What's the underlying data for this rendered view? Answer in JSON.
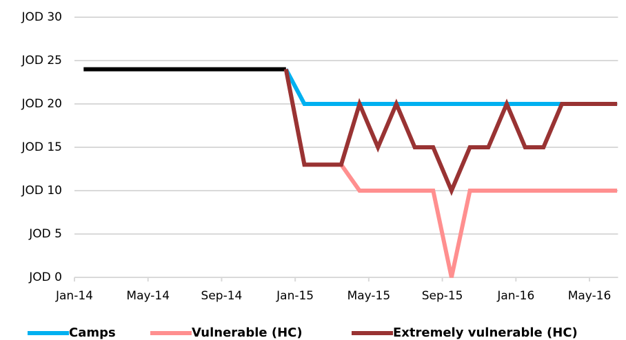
{
  "chart_data": {
    "type": "line",
    "categories": [
      "Jan-14",
      null,
      null,
      null,
      "May-14",
      null,
      null,
      null,
      "Sep-14",
      null,
      null,
      null,
      "Jan-15",
      null,
      null,
      null,
      "May-15",
      null,
      null,
      null,
      "Sep-15",
      null,
      null,
      null,
      "Jan-16",
      null,
      null,
      null,
      "May-16",
      null
    ],
    "series": [
      {
        "color": "#000000",
        "values": [
          24,
          24,
          24,
          24,
          24,
          24,
          24,
          24,
          24,
          24,
          24,
          24,
          null,
          null,
          null,
          null,
          null,
          null,
          null,
          null,
          null,
          null,
          null,
          null,
          null,
          null,
          null,
          null,
          null,
          null
        ]
      },
      {
        "name": "Camps",
        "color": "#00b0f0",
        "values": [
          null,
          null,
          null,
          null,
          null,
          null,
          null,
          null,
          null,
          null,
          null,
          24,
          20,
          20,
          20,
          20,
          20,
          20,
          20,
          20,
          20,
          20,
          20,
          20,
          20,
          20,
          20,
          20,
          20,
          20
        ]
      },
      {
        "name": "Vulnerable (HC)",
        "color": "#ff8f8f",
        "values": [
          null,
          null,
          null,
          null,
          null,
          null,
          null,
          null,
          null,
          null,
          null,
          24,
          13,
          13,
          13,
          10,
          10,
          10,
          10,
          10,
          0,
          10,
          10,
          10,
          10,
          10,
          10,
          10,
          10,
          10
        ]
      },
      {
        "name": "Extremely vulnerable (HC)",
        "color": "#993333",
        "values": [
          null,
          null,
          null,
          null,
          null,
          null,
          null,
          null,
          null,
          null,
          null,
          24,
          13,
          13,
          13,
          20,
          15,
          20,
          15,
          15,
          10,
          15,
          15,
          20,
          15,
          15,
          20,
          20,
          20,
          20
        ]
      }
    ],
    "ylim": [
      0,
      30
    ],
    "yticks": [
      {
        "value": 0,
        "label": "JOD 0"
      },
      {
        "value": 5,
        "label": "JOD 5"
      },
      {
        "value": 10,
        "label": "JOD 10"
      },
      {
        "value": 15,
        "label": "JOD 15"
      },
      {
        "value": 20,
        "label": "JOD 20"
      },
      {
        "value": 25,
        "label": "JOD 25"
      },
      {
        "value": 30,
        "label": "JOD 30"
      }
    ],
    "grid": true,
    "legend": "bottom"
  }
}
